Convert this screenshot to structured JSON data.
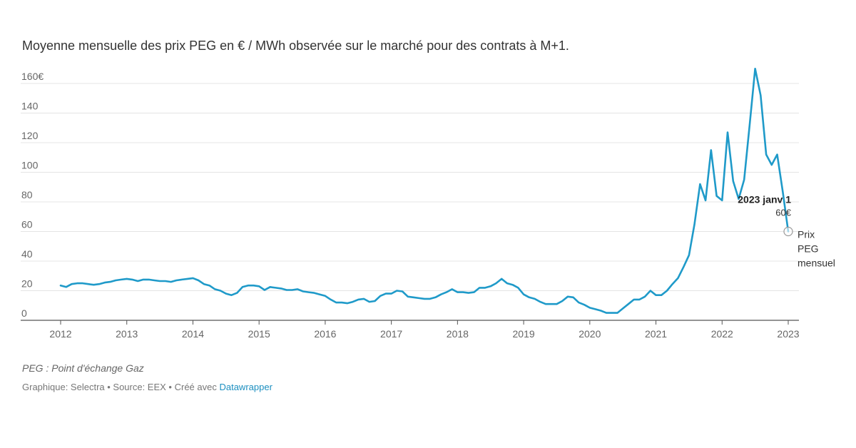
{
  "chart_data": {
    "type": "line",
    "subtitle": "Moyenne mensuelle des prix PEG en € / MWh observée sur le marché pour des contrats à M+1.",
    "ylim": [
      0,
      160
    ],
    "y_ticks": [
      "0",
      "20",
      "40",
      "60",
      "80",
      "100",
      "120",
      "140",
      "160€"
    ],
    "y_tick_values": [
      0,
      20,
      40,
      60,
      80,
      100,
      120,
      140,
      160
    ],
    "x_ticks": [
      "2012",
      "2013",
      "2014",
      "2015",
      "2016",
      "2017",
      "2018",
      "2019",
      "2020",
      "2021",
      "2022",
      "2023"
    ],
    "x_tick_values": [
      2012,
      2013,
      2014,
      2015,
      2016,
      2017,
      2018,
      2019,
      2020,
      2021,
      2022,
      2023
    ],
    "xlim": [
      2012,
      2023
    ],
    "grid": true,
    "series": [
      {
        "name": "Prix PEG mensuel",
        "color": "#1f9ac9",
        "x": [
          2012.0,
          2012.083,
          2012.167,
          2012.25,
          2012.333,
          2012.417,
          2012.5,
          2012.583,
          2012.667,
          2012.75,
          2012.833,
          2012.917,
          2013.0,
          2013.083,
          2013.167,
          2013.25,
          2013.333,
          2013.417,
          2013.5,
          2013.583,
          2013.667,
          2013.75,
          2013.833,
          2013.917,
          2014.0,
          2014.083,
          2014.167,
          2014.25,
          2014.333,
          2014.417,
          2014.5,
          2014.583,
          2014.667,
          2014.75,
          2014.833,
          2014.917,
          2015.0,
          2015.083,
          2015.167,
          2015.25,
          2015.333,
          2015.417,
          2015.5,
          2015.583,
          2015.667,
          2015.75,
          2015.833,
          2015.917,
          2016.0,
          2016.083,
          2016.167,
          2016.25,
          2016.333,
          2016.417,
          2016.5,
          2016.583,
          2016.667,
          2016.75,
          2016.833,
          2016.917,
          2017.0,
          2017.083,
          2017.167,
          2017.25,
          2017.333,
          2017.417,
          2017.5,
          2017.583,
          2017.667,
          2017.75,
          2017.833,
          2017.917,
          2018.0,
          2018.083,
          2018.167,
          2018.25,
          2018.333,
          2018.417,
          2018.5,
          2018.583,
          2018.667,
          2018.75,
          2018.833,
          2018.917,
          2019.0,
          2019.083,
          2019.167,
          2019.25,
          2019.333,
          2019.417,
          2019.5,
          2019.583,
          2019.667,
          2019.75,
          2019.833,
          2019.917,
          2020.0,
          2020.083,
          2020.167,
          2020.25,
          2020.333,
          2020.417,
          2020.5,
          2020.583,
          2020.667,
          2020.75,
          2020.833,
          2020.917,
          2021.0,
          2021.083,
          2021.167,
          2021.25,
          2021.333,
          2021.417,
          2021.5,
          2021.583,
          2021.667,
          2021.75,
          2021.833,
          2021.917,
          2022.0,
          2022.083,
          2022.167,
          2022.25,
          2022.333,
          2022.417,
          2022.5,
          2022.583,
          2022.667,
          2022.75,
          2022.833,
          2022.917,
          2023.0
        ],
        "y": [
          23.5,
          22.5,
          24.5,
          25,
          25,
          24.5,
          24,
          24.5,
          25.5,
          26,
          27,
          27.5,
          28,
          27.5,
          26.5,
          27.5,
          27.5,
          27,
          26.5,
          26.5,
          26,
          27,
          27.5,
          28,
          28.5,
          27,
          24.5,
          23.5,
          21,
          20,
          18,
          17,
          18.5,
          22.5,
          23.5,
          23.5,
          23,
          20.5,
          22.5,
          22,
          21.5,
          20.5,
          20.5,
          21,
          19.5,
          19,
          18.5,
          17.5,
          16.5,
          14,
          12,
          12,
          11.5,
          12.5,
          14,
          14.5,
          12.5,
          13,
          16.5,
          18,
          18,
          20,
          19.5,
          16,
          15.5,
          15,
          14.5,
          14.5,
          15.5,
          17.5,
          19,
          21,
          19,
          19,
          18.5,
          19,
          22,
          22,
          23,
          25,
          28,
          25,
          24,
          22,
          17.5,
          15.5,
          14.5,
          12.5,
          11,
          11,
          11,
          13,
          16,
          15.5,
          12,
          10.5,
          8.5,
          7.5,
          6.5,
          5,
          5,
          5,
          8,
          11,
          14,
          14,
          16,
          20,
          17,
          17,
          20,
          24.5,
          28.5,
          36,
          44,
          65,
          92,
          81,
          115,
          84,
          81,
          127,
          94,
          82,
          95,
          132,
          170,
          152,
          112,
          105,
          112,
          87,
          60
        ]
      }
    ],
    "annotation": {
      "title": "2023 janv 1",
      "value": "60€",
      "x": 2023.0,
      "y": 60
    },
    "series_label": [
      "Prix",
      "PEG",
      "mensuel"
    ]
  },
  "footer": {
    "note": "PEG : Point d'échange Gaz",
    "credits_prefix": "Graphique: Selectra • Source: EEX • Créé avec ",
    "credits_link": "Datawrapper"
  }
}
